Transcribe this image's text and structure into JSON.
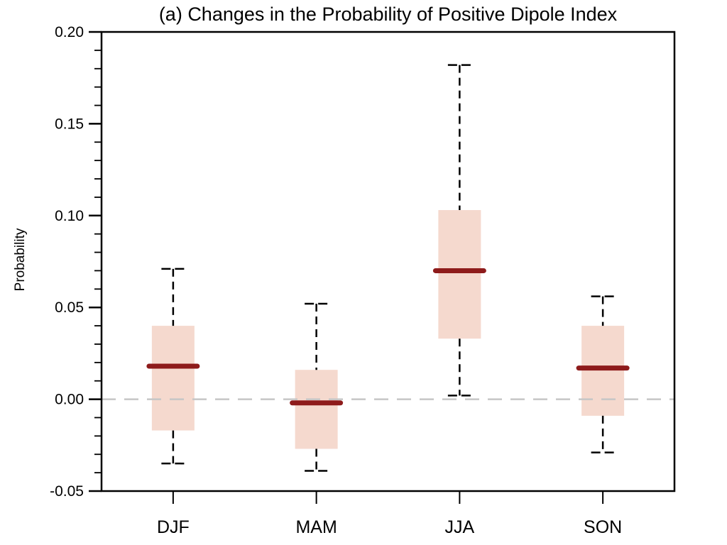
{
  "title": "(a) Changes in the Probability of Positive Dipole Index",
  "colors": {
    "box_fill": "#f5d9ce",
    "median": "#8e1b1b",
    "axis": "#000000",
    "zero_line": "#c6c6c6",
    "text": "#000000",
    "background": "#ffffff"
  },
  "chart_data": {
    "type": "box",
    "title": "(a) Changes in the Probability of Positive Dipole Index",
    "xlabel": "",
    "ylabel": "Probability",
    "categories": [
      "DJF",
      "MAM",
      "JJA",
      "SON"
    ],
    "ylim": [
      -0.05,
      0.2
    ],
    "ytick_major_values": [
      0.2,
      0.15,
      0.1,
      0.05,
      0.0,
      -0.05
    ],
    "ytick_labels": [
      "0.20",
      "0.15",
      "0.10",
      "0.05",
      "0.00",
      "-0.05"
    ],
    "ytick_minor_step": 0.01,
    "zero_reference_line": 0.0,
    "grid": "off",
    "legend": "none",
    "series": [
      {
        "category": "DJF",
        "whisker_low": -0.035,
        "q1": -0.017,
        "median": 0.018,
        "q3": 0.04,
        "whisker_high": 0.071
      },
      {
        "category": "MAM",
        "whisker_low": -0.039,
        "q1": -0.027,
        "median": -0.002,
        "q3": 0.016,
        "whisker_high": 0.052
      },
      {
        "category": "JJA",
        "whisker_low": 0.002,
        "q1": 0.033,
        "median": 0.07,
        "q3": 0.103,
        "whisker_high": 0.182
      },
      {
        "category": "SON",
        "whisker_low": -0.029,
        "q1": -0.009,
        "median": 0.017,
        "q3": 0.04,
        "whisker_high": 0.056
      }
    ]
  }
}
